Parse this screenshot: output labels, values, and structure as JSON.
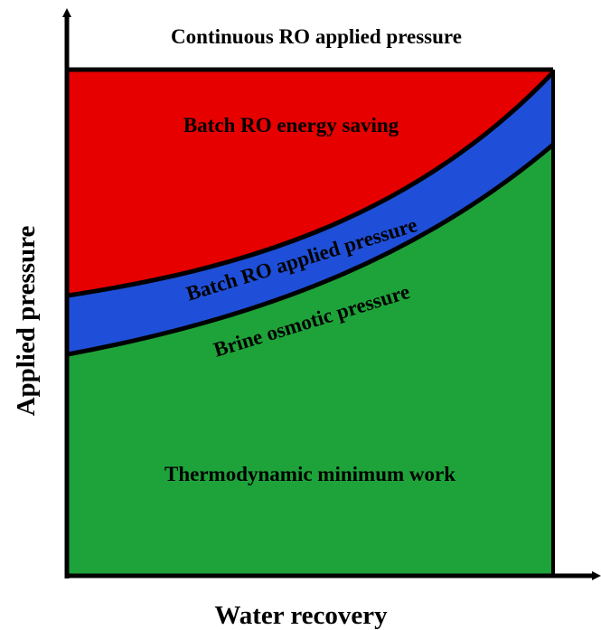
{
  "title": "Continuous RO applied pressure",
  "regions": {
    "energy_saving": "Batch RO energy saving",
    "batch_pressure": "Batch RO applied pressure",
    "osmotic_pressure": "Brine osmotic pressure",
    "minimum_work": "Thermodynamic minimum work"
  },
  "axes": {
    "x_label": "Water recovery",
    "y_label": "Applied pressure"
  }
}
